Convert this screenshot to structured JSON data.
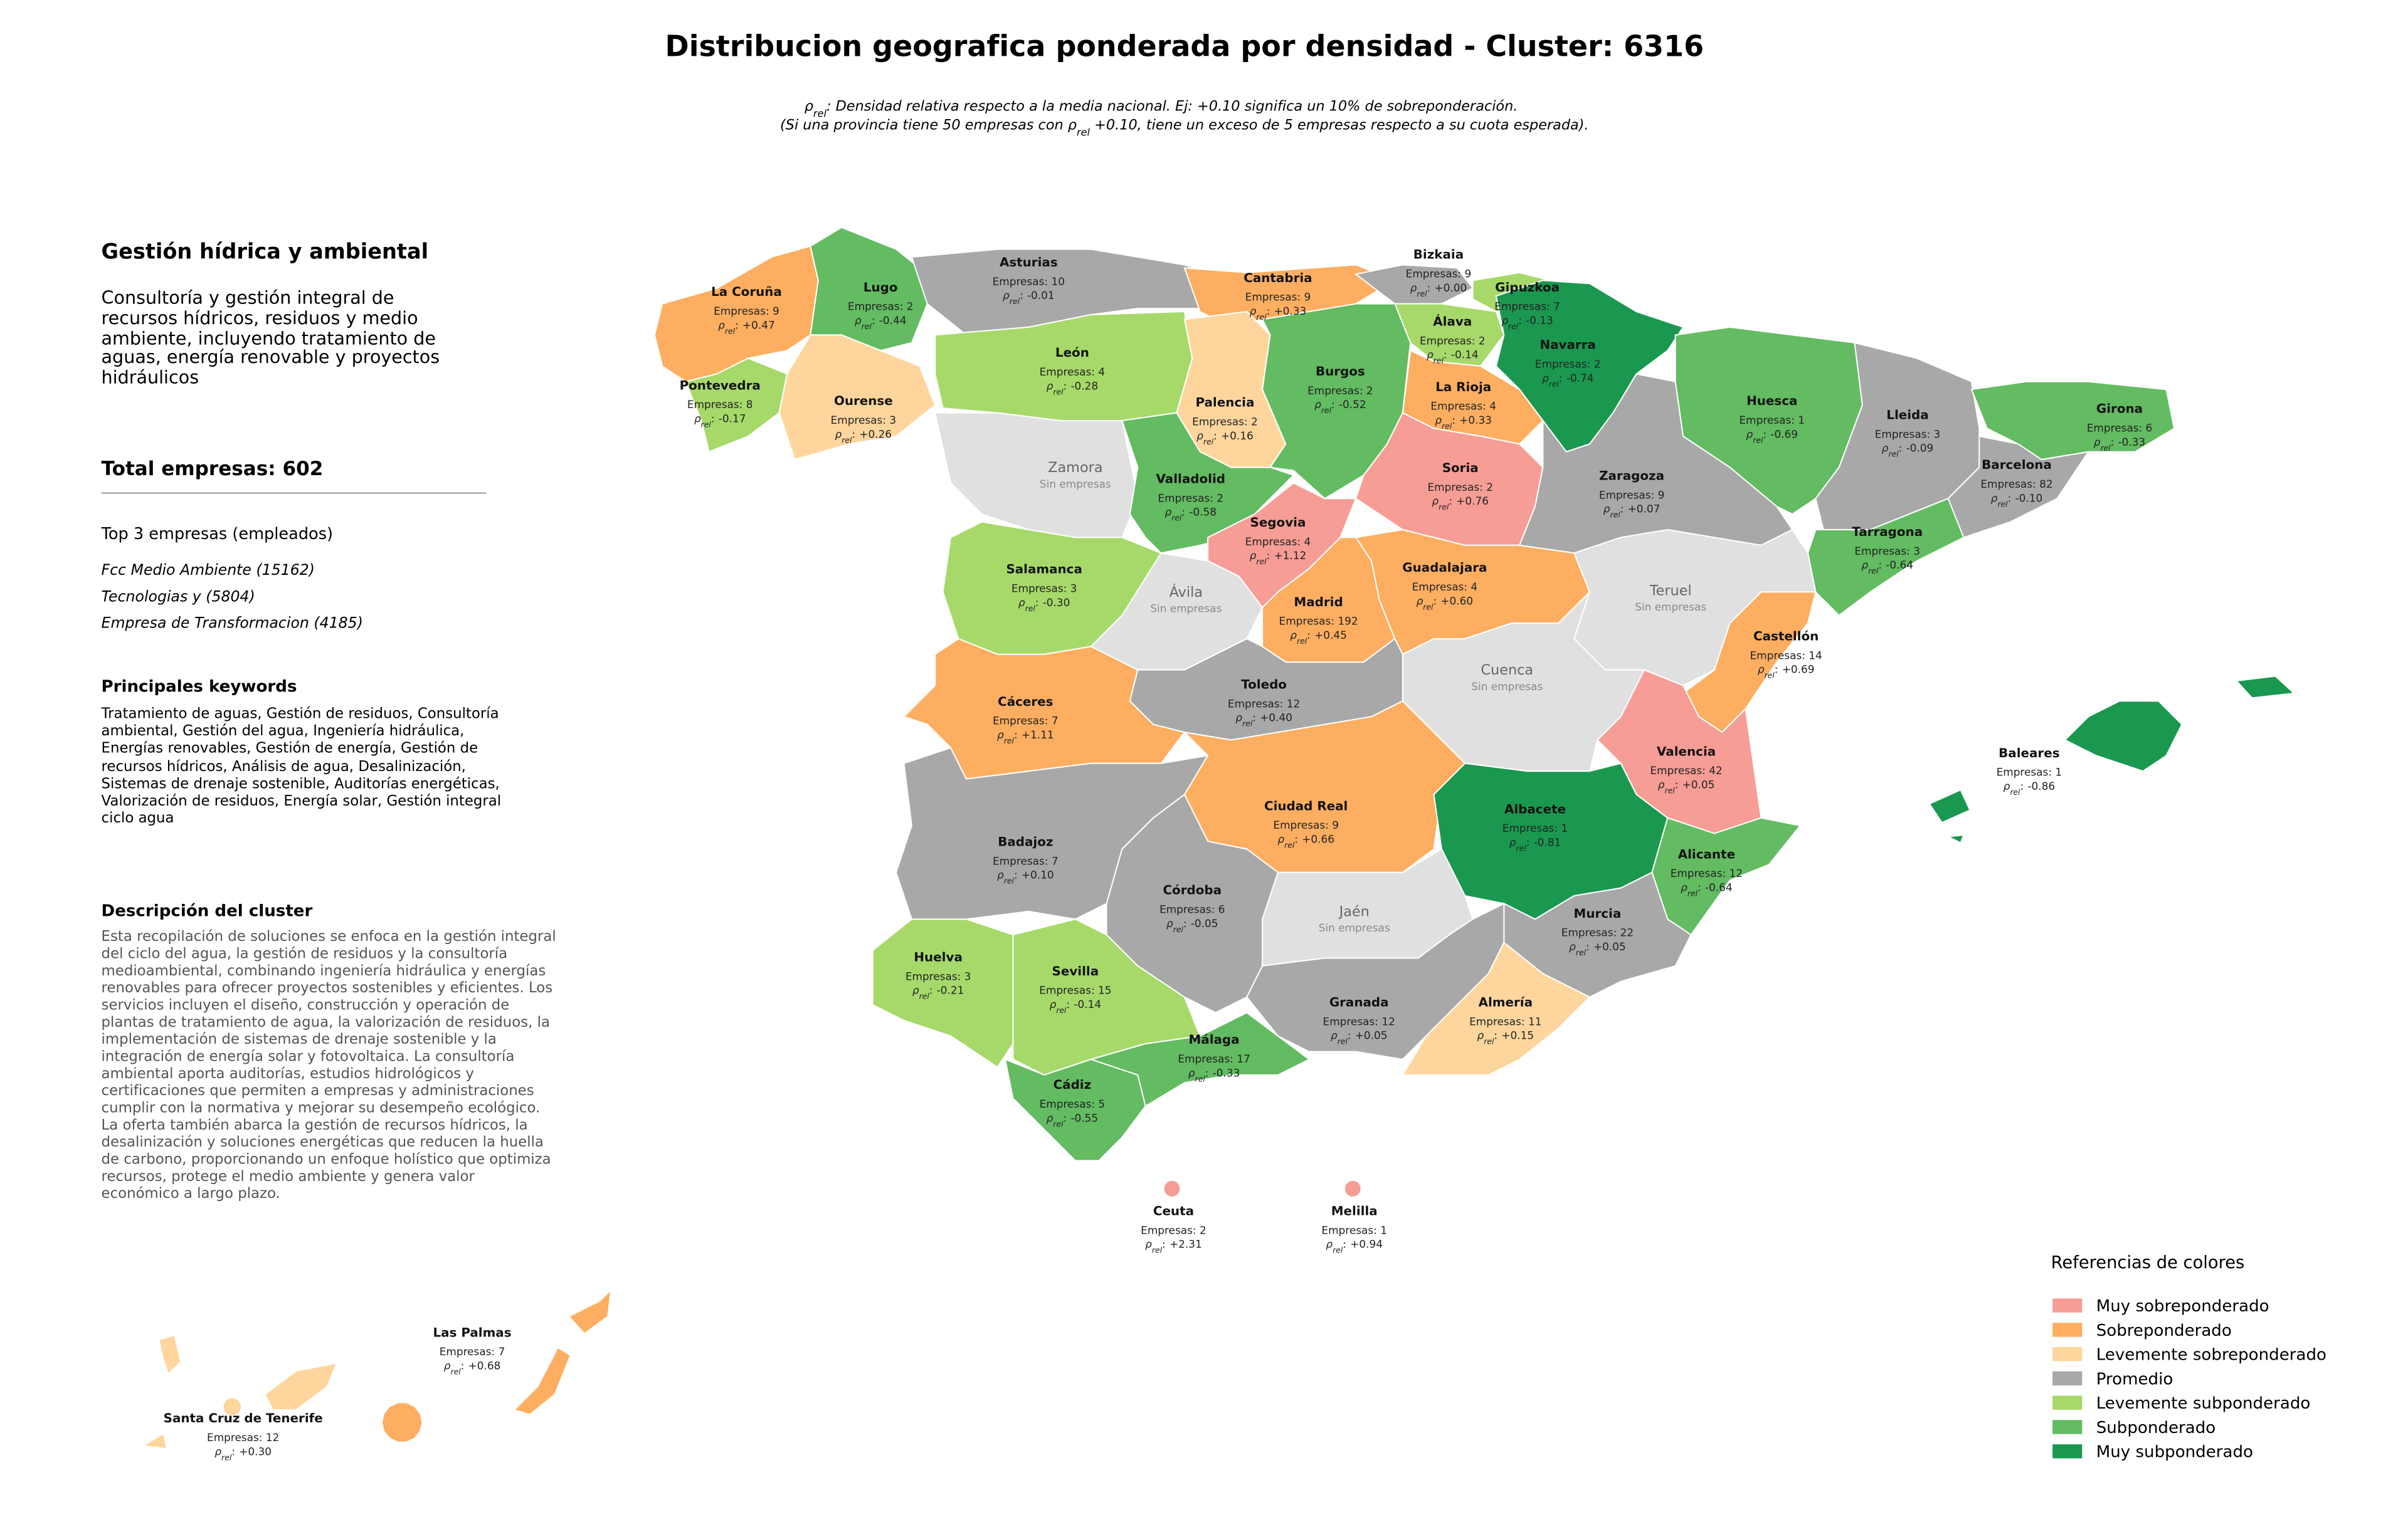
{
  "header": {
    "title": "Distribucion geografica ponderada por densidad - Cluster: 6316",
    "subtitle": {
      "line1_text": ": Densidad relativa respecto a la media nacional. Ej: +0.10 significa un 10% de sobreponderación.",
      "line2_before": "(Si una provincia tiene 50 empresas con ",
      "line2_after": " +0.10, tiene un exceso de 5 empresas respecto a su cuota esperada)."
    }
  },
  "density_label": {
    "symbol": "ρ",
    "subscript": "rel",
    "separator": ":"
  },
  "panel": {
    "title": "Gestión hídrica y ambiental",
    "summary": "Consultoría y gestión integral de recursos hídricos, residuos y medio ambiente, incluyendo tratamiento de aguas, energía renovable y proyectos hidráulicos",
    "total": "Total empresas: 602",
    "top_heading": "Top 3 empresas (empleados)",
    "top_items": [
      "Fcc Medio Ambiente (15162)",
      "Tecnologias y (5804)",
      "Empresa de Transformacion (4185)"
    ],
    "keywords_heading": "Principales keywords",
    "keywords": "Tratamiento de aguas, Gestión de residuos, Consultoría ambiental, Gestión del agua, Ingeniería hidráulica, Energías renovables, Gestión de energía, Gestión de recursos hídricos, Análisis de agua, Desalinización, Sistemas de drenaje sostenible, Auditorías energéticas, Valorización de residuos, Energía solar, Gestión integral ciclo agua",
    "description_heading": "Descripción del cluster",
    "description": "Esta recopilación de soluciones se enfoca en la gestión integral del ciclo del agua, la gestión de residuos y la consultoría medioambiental, combinando ingeniería hidráulica y energías renovables para ofrecer proyectos sostenibles y eficientes. Los servicios incluyen el diseño, construcción y operación de plantas de tratamiento de agua, la valorización de residuos, la implementación de sistemas de drenaje sostenible y la integración de energía solar y fotovoltaica. La consultoría ambiental aporta auditorías, estudios hidrológicos y certificaciones que permiten a empresas y administraciones cumplir con la normativa y mejorar su desempeño ecológico. La oferta también abarca la gestión de recursos hídricos, la desalinización y soluciones energéticas que reducen la huella de carbono, proporcionando un enfoque holístico que optimiza recursos, protege el medio ambiente y genera valor económico a largo plazo."
  },
  "legend": {
    "title": "Referencias de colores",
    "items": [
      {
        "label": "Muy sobreponderado",
        "color": "#f69d96"
      },
      {
        "label": "Sobreponderado",
        "color": "#fdae61"
      },
      {
        "label": "Levemente sobreponderado",
        "color": "#fed69d"
      },
      {
        "label": "Promedio",
        "color": "#a8a8a8"
      },
      {
        "label": "Levemente subponderado",
        "color": "#a6d96a"
      },
      {
        "label": "Subponderado",
        "color": "#63bb62"
      },
      {
        "label": "Muy subponderado",
        "color": "#1a9850"
      }
    ]
  },
  "provinces": [
    {
      "name": "La Coruña",
      "count": "Empresas: 9",
      "rho": "+0.47",
      "color": "#fdae61"
    },
    {
      "name": "Lugo",
      "count": "Empresas: 2",
      "rho": "-0.44",
      "color": "#63bb62"
    },
    {
      "name": "Pontevedra",
      "count": "Empresas: 8",
      "rho": "-0.17",
      "color": "#a6d96a"
    },
    {
      "name": "Ourense",
      "count": "Empresas: 3",
      "rho": "+0.26",
      "color": "#fed69d"
    },
    {
      "name": "Asturias",
      "count": "Empresas: 10",
      "rho": "-0.01",
      "color": "#a8a8a8"
    },
    {
      "name": "Cantabria",
      "count": "Empresas: 9",
      "rho": "+0.33",
      "color": "#fdae61"
    },
    {
      "name": "Bizkaia",
      "count": "Empresas: 9",
      "rho": "+0.00",
      "color": "#a8a8a8"
    },
    {
      "name": "Gipuzkoa",
      "count": "Empresas: 7",
      "rho": "-0.13",
      "color": "#a6d96a"
    },
    {
      "name": "Álava",
      "count": "Empresas: 2",
      "rho": "-0.14",
      "color": "#a6d96a"
    },
    {
      "name": "Navarra",
      "count": "Empresas: 2",
      "rho": "-0.74",
      "color": "#1a9850"
    },
    {
      "name": "León",
      "count": "Empresas: 4",
      "rho": "-0.28",
      "color": "#a6d96a"
    },
    {
      "name": "Palencia",
      "count": "Empresas: 2",
      "rho": "+0.16",
      "color": "#fed69d"
    },
    {
      "name": "Burgos",
      "count": "Empresas: 2",
      "rho": "-0.52",
      "color": "#63bb62"
    },
    {
      "name": "La Rioja",
      "count": "Empresas: 4",
      "rho": "+0.33",
      "color": "#fdae61"
    },
    {
      "name": "Zamora",
      "note": "Sin empresas",
      "color": "#e0e0e0"
    },
    {
      "name": "Valladolid",
      "count": "Empresas: 2",
      "rho": "-0.58",
      "color": "#63bb62"
    },
    {
      "name": "Soria",
      "count": "Empresas: 2",
      "rho": "+0.76",
      "color": "#f69d96"
    },
    {
      "name": "Zaragoza",
      "count": "Empresas: 9",
      "rho": "+0.07",
      "color": "#a8a8a8"
    },
    {
      "name": "Huesca",
      "count": "Empresas: 1",
      "rho": "-0.69",
      "color": "#63bb62"
    },
    {
      "name": "Lleida",
      "count": "Empresas: 3",
      "rho": "-0.09",
      "color": "#a8a8a8"
    },
    {
      "name": "Girona",
      "count": "Empresas: 6",
      "rho": "-0.33",
      "color": "#63bb62"
    },
    {
      "name": "Barcelona",
      "count": "Empresas: 82",
      "rho": "-0.10",
      "color": "#a8a8a8"
    },
    {
      "name": "Tarragona",
      "count": "Empresas: 3",
      "rho": "-0.64",
      "color": "#63bb62"
    },
    {
      "name": "Segovia",
      "count": "Empresas: 4",
      "rho": "+1.12",
      "color": "#f69d96"
    },
    {
      "name": "Salamanca",
      "count": "Empresas: 3",
      "rho": "-0.30",
      "color": "#a6d96a"
    },
    {
      "name": "Ávila",
      "note": "Sin empresas",
      "color": "#e0e0e0"
    },
    {
      "name": "Madrid",
      "count": "Empresas: 192",
      "rho": "+0.45",
      "color": "#fdae61"
    },
    {
      "name": "Guadalajara",
      "count": "Empresas: 4",
      "rho": "+0.60",
      "color": "#fdae61"
    },
    {
      "name": "Teruel",
      "note": "Sin empresas",
      "color": "#e0e0e0"
    },
    {
      "name": "Castellón",
      "count": "Empresas: 14",
      "rho": "+0.69",
      "color": "#fdae61"
    },
    {
      "name": "Cuenca",
      "note": "Sin empresas",
      "color": "#e0e0e0"
    },
    {
      "name": "Cáceres",
      "count": "Empresas: 7",
      "rho": "+1.11",
      "color": "#f69d96"
    },
    {
      "name": "Toledo",
      "count": "Empresas: 12",
      "rho": "+0.40",
      "color": "#fdae61"
    },
    {
      "name": "Valencia",
      "count": "Empresas: 42",
      "rho": "+0.05",
      "color": "#a8a8a8"
    },
    {
      "name": "Badajoz",
      "count": "Empresas: 7",
      "rho": "+0.10",
      "color": "#a8a8a8"
    },
    {
      "name": "Ciudad Real",
      "count": "Empresas: 9",
      "rho": "+0.66",
      "color": "#fdae61"
    },
    {
      "name": "Albacete",
      "count": "Empresas: 1",
      "rho": "-0.81",
      "color": "#1a9850"
    },
    {
      "name": "Alicante",
      "count": "Empresas: 12",
      "rho": "-0.64",
      "color": "#63bb62"
    },
    {
      "name": "Córdoba",
      "count": "Empresas: 6",
      "rho": "-0.05",
      "color": "#a8a8a8"
    },
    {
      "name": "Jaén",
      "note": "Sin empresas",
      "color": "#e0e0e0"
    },
    {
      "name": "Murcia",
      "count": "Empresas: 22",
      "rho": "+0.05",
      "color": "#a8a8a8"
    },
    {
      "name": "Huelva",
      "count": "Empresas: 3",
      "rho": "-0.21",
      "color": "#a6d96a"
    },
    {
      "name": "Sevilla",
      "count": "Empresas: 15",
      "rho": "-0.14",
      "color": "#a6d96a"
    },
    {
      "name": "Granada",
      "count": "Empresas: 12",
      "rho": "+0.05",
      "color": "#a8a8a8"
    },
    {
      "name": "Almería",
      "count": "Empresas: 11",
      "rho": "+0.15",
      "color": "#fed69d"
    },
    {
      "name": "Málaga",
      "count": "Empresas: 17",
      "rho": "-0.33",
      "color": "#63bb62"
    },
    {
      "name": "Cádiz",
      "count": "Empresas: 5",
      "rho": "-0.55",
      "color": "#63bb62"
    },
    {
      "name": "Baleares",
      "count": "Empresas: 1",
      "rho": "-0.86",
      "color": "#1a9850"
    },
    {
      "name": "Ceuta",
      "count": "Empresas: 2",
      "rho": "+2.31",
      "color": "#f69d96"
    },
    {
      "name": "Melilla",
      "count": "Empresas: 1",
      "rho": "+0.94",
      "color": "#f69d96"
    },
    {
      "name": "Las Palmas",
      "count": "Empresas: 7",
      "rho": "+0.68",
      "color": "#fdae61"
    },
    {
      "name": "Santa Cruz de Tenerife",
      "count": "Empresas: 12",
      "rho": "+0.30",
      "color": "#fed69d"
    }
  ]
}
